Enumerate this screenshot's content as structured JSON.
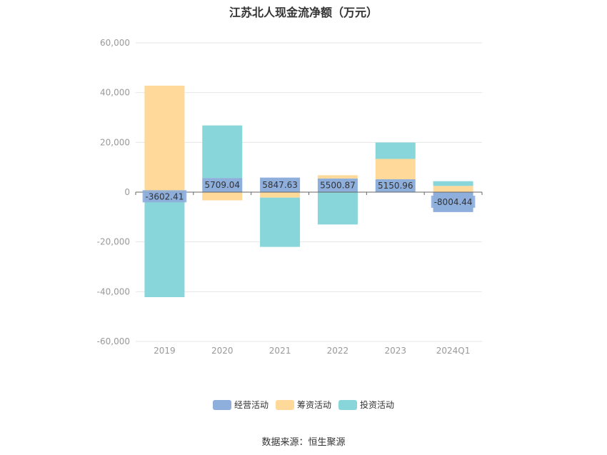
{
  "title": "江苏北人现金流净额（万元）",
  "source_note": "数据来源：恒生聚源",
  "colors": {
    "operating": "#8eaedc",
    "financing": "#ffd99a",
    "investing": "#88d6d9",
    "grid": "#e6e6e6",
    "axis": "#666666"
  },
  "chart_data": {
    "type": "bar",
    "stacked": true,
    "title": "江苏北人现金流净额（万元）",
    "categories": [
      "2019",
      "2020",
      "2021",
      "2022",
      "2023",
      "2024Q1"
    ],
    "ylim": [
      -60000,
      60000
    ],
    "yticks": [
      60000,
      40000,
      20000,
      0,
      -20000,
      -40000,
      -60000
    ],
    "ytick_labels": [
      "60,000",
      "40,000",
      "20,000",
      "0",
      "-20,000",
      "-40,000",
      "-60,000"
    ],
    "grid": true,
    "legend_position": "bottom",
    "series": [
      {
        "name": "经营活动",
        "color": "#8eaedc",
        "values": [
          -3602.41,
          5709.04,
          5847.63,
          5500.87,
          5150.96,
          -8004.44
        ],
        "labels": [
          "-3602.41",
          "5709.04",
          "5847.63",
          "5500.87",
          "5150.96",
          "-8004.44"
        ]
      },
      {
        "name": "筹资活动",
        "color": "#ffd99a",
        "values": [
          42800,
          -3300,
          -2200,
          1300,
          8200,
          2500
        ]
      },
      {
        "name": "投资活动",
        "color": "#88d6d9",
        "values": [
          -38600,
          21100,
          -19800,
          -13000,
          6600,
          1900
        ]
      }
    ]
  }
}
